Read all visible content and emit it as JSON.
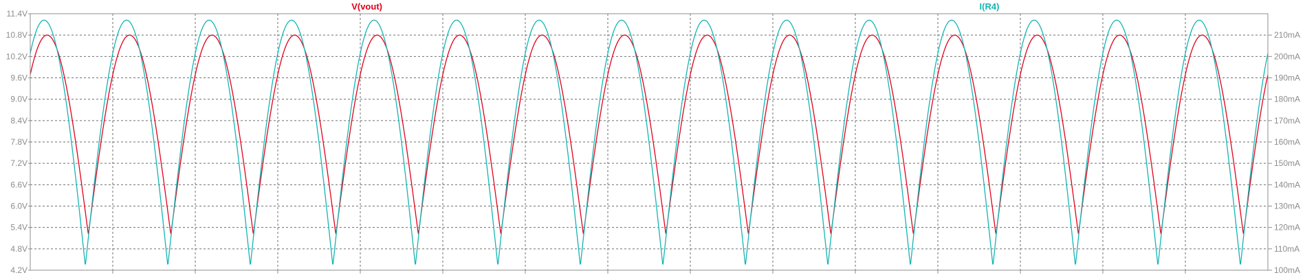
{
  "chart_data": {
    "type": "line",
    "title": "",
    "x_range": [
      0,
      15
    ],
    "x_grid_count": 15,
    "y_left": {
      "unit": "V",
      "range": [
        4.2,
        11.4
      ],
      "ticks": [
        "11.4V",
        "10.8V",
        "10.2V",
        "9.6V",
        "9.0V",
        "8.4V",
        "7.8V",
        "7.2V",
        "6.6V",
        "6.0V",
        "5.4V",
        "4.8V",
        "4.2V"
      ]
    },
    "y_right": {
      "unit": "mA",
      "range": [
        100,
        220
      ],
      "ticks": [
        "210mA",
        "200mA",
        "190mA",
        "180mA",
        "170mA",
        "160mA",
        "150mA",
        "140mA",
        "130mA",
        "120mA",
        "110mA",
        "100mA"
      ]
    },
    "grid": true,
    "legend_placement": "top",
    "series": [
      {
        "name": "V(vout)",
        "color": "#e0001a",
        "axis": "left",
        "periodic": true,
        "period": 1,
        "max": 10.8,
        "min": 5.2,
        "start": 8.8,
        "end": 9.4
      },
      {
        "name": "I(R4)",
        "color": "#15b4b4",
        "axis": "right",
        "periodic": true,
        "period": 1,
        "max": 217,
        "min": 102,
        "start": 188,
        "end": 198
      }
    ]
  }
}
